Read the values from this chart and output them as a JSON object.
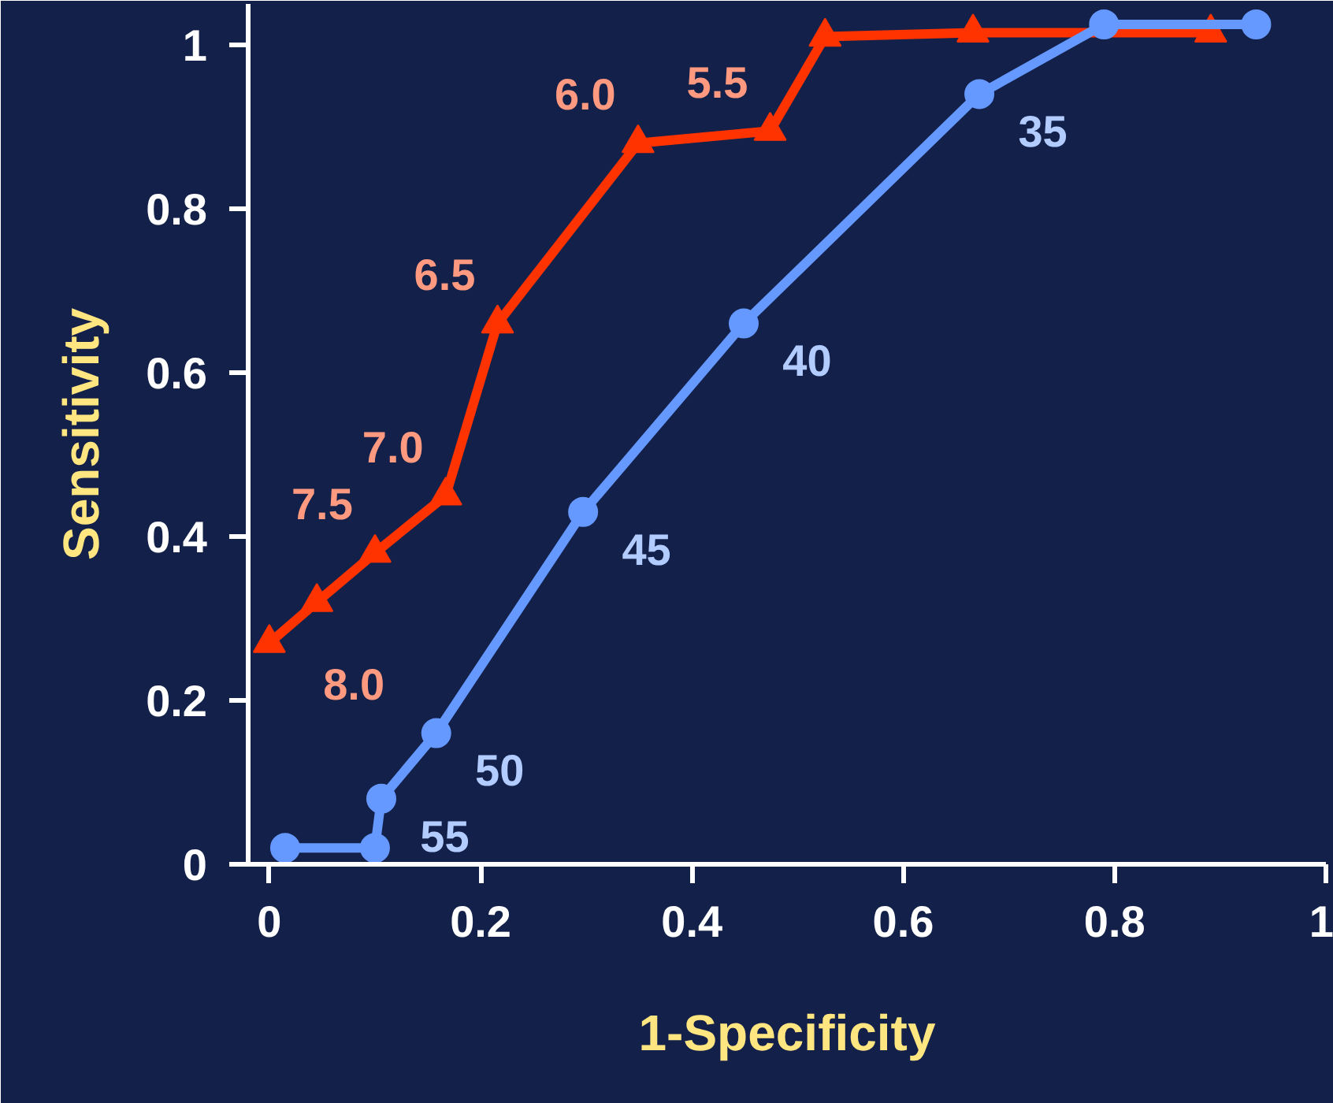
{
  "chart_data": {
    "type": "line",
    "xlabel": "1-Specificity",
    "ylabel": "Sensitivity",
    "xlim": [
      -0.02,
      1.0
    ],
    "ylim": [
      0,
      1.05
    ],
    "xticks": [
      0,
      0.2,
      0.4,
      0.6,
      0.8,
      1
    ],
    "yticks": [
      0,
      0.2,
      0.4,
      0.6,
      0.8,
      1
    ],
    "grid": false,
    "line_style": "solid",
    "series": [
      {
        "color": "#ff3300",
        "marker": "triangle",
        "x": [
          0,
          0.045,
          0.1,
          0.167,
          0.216,
          0.349,
          0.474,
          0.526,
          0.666,
          0.891
        ],
        "values": [
          0.27,
          0.32,
          0.38,
          0.45,
          0.66,
          0.88,
          0.895,
          1.01,
          1.015,
          1.015
        ]
      },
      {
        "color": "#6699ff",
        "marker": "circle",
        "x": [
          0.015,
          0.1,
          0.106,
          0.158,
          0.297,
          0.449,
          0.672,
          0.79,
          0.934
        ],
        "values": [
          0.02,
          0.02,
          0.08,
          0.16,
          0.43,
          0.66,
          0.94,
          1.025,
          1.025
        ]
      }
    ],
    "annotations": [
      {
        "text": "8.0",
        "x": 0,
        "y": 0.27
      },
      {
        "text": "7.5",
        "x": 0.1,
        "y": 0.38
      },
      {
        "text": "7.0",
        "x": 0.167,
        "y": 0.45
      },
      {
        "text": "6.5",
        "x": 0.216,
        "y": 0.66
      },
      {
        "text": "6.0",
        "x": 0.349,
        "y": 0.88
      },
      {
        "text": "5.5",
        "x": 0.474,
        "y": 0.895
      },
      {
        "text": "55",
        "x": 0.106,
        "y": 0.08
      },
      {
        "text": "50",
        "x": 0.158,
        "y": 0.16
      },
      {
        "text": "45",
        "x": 0.297,
        "y": 0.43
      },
      {
        "text": "40",
        "x": 0.449,
        "y": 0.66
      },
      {
        "text": "35",
        "x": 0.672,
        "y": 0.94
      }
    ]
  }
}
